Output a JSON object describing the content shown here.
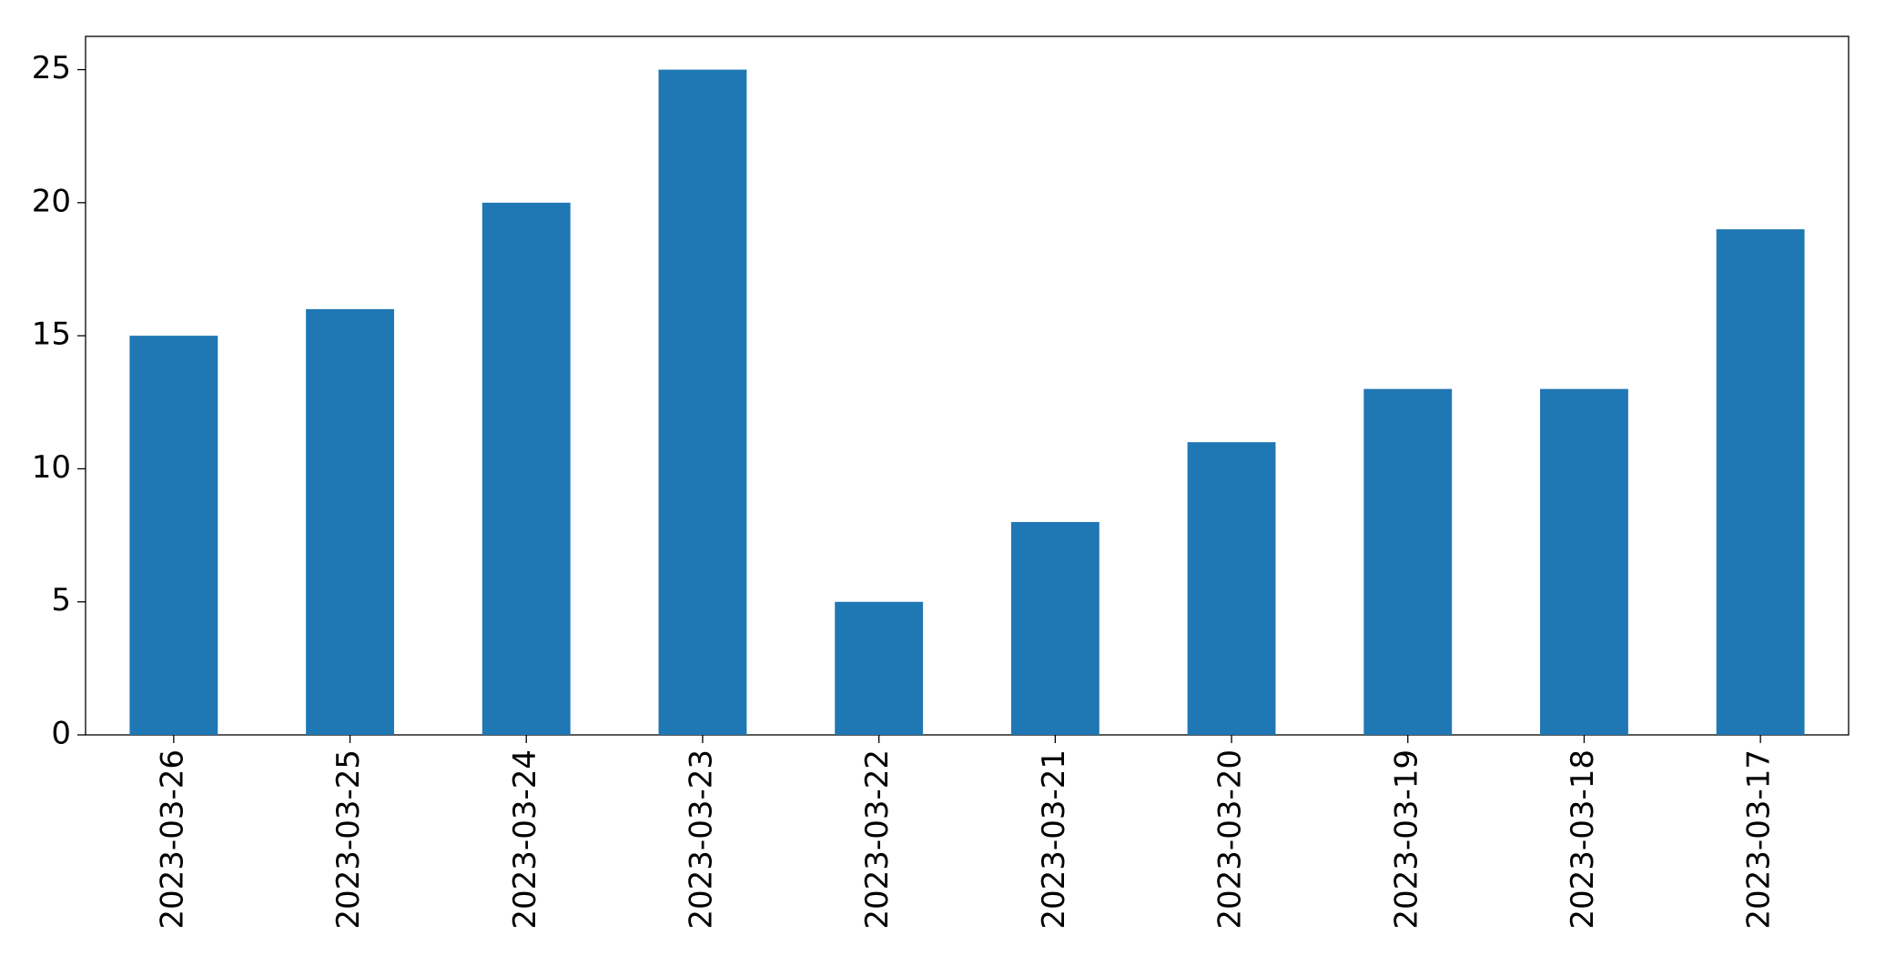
{
  "chart_data": {
    "type": "bar",
    "categories": [
      "2023-03-26",
      "2023-03-25",
      "2023-03-24",
      "2023-03-23",
      "2023-03-22",
      "2023-03-21",
      "2023-03-20",
      "2023-03-19",
      "2023-03-18",
      "2023-03-17"
    ],
    "values": [
      15,
      16,
      20,
      25,
      5,
      8,
      11,
      13,
      13,
      19
    ],
    "color": "#1f77b4",
    "ylim": [
      0,
      26.25
    ],
    "yticks": [
      0,
      5,
      10,
      15,
      20,
      25
    ],
    "grid": false
  }
}
